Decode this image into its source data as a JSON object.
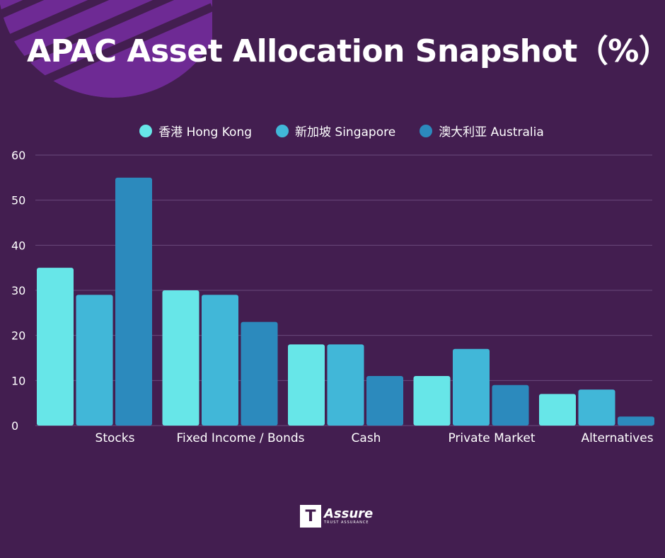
{
  "title": "APAC Asset Allocation Snapshot（%）",
  "colors": {
    "background": "#431e50",
    "decoration": "#6e2a94"
  },
  "logo": {
    "mark": "T",
    "word": "Assure",
    "tagline": "TRUST ASSURANCE"
  },
  "chart_data": {
    "type": "bar",
    "title": "APAC Asset Allocation Snapshot（%）",
    "xlabel": "",
    "ylabel": "",
    "ylim": [
      0,
      60
    ],
    "yticks": [
      0,
      10,
      20,
      30,
      40,
      50,
      60
    ],
    "grid": true,
    "legend_position": "top-center",
    "categories": [
      "Stocks",
      "Fixed Income / Bonds",
      "Cash",
      "Private Market",
      "Alternatives"
    ],
    "series": [
      {
        "name": "香港 Hong Kong",
        "color": "#67e6e8",
        "values": [
          35,
          30,
          18,
          11,
          7
        ]
      },
      {
        "name": "新加坡 Singapore",
        "color": "#41b7d8",
        "values": [
          29,
          29,
          18,
          17,
          8
        ]
      },
      {
        "name": "澳大利亚 Australia",
        "color": "#2c8abd",
        "values": [
          55,
          23,
          11,
          9,
          2
        ]
      }
    ]
  }
}
